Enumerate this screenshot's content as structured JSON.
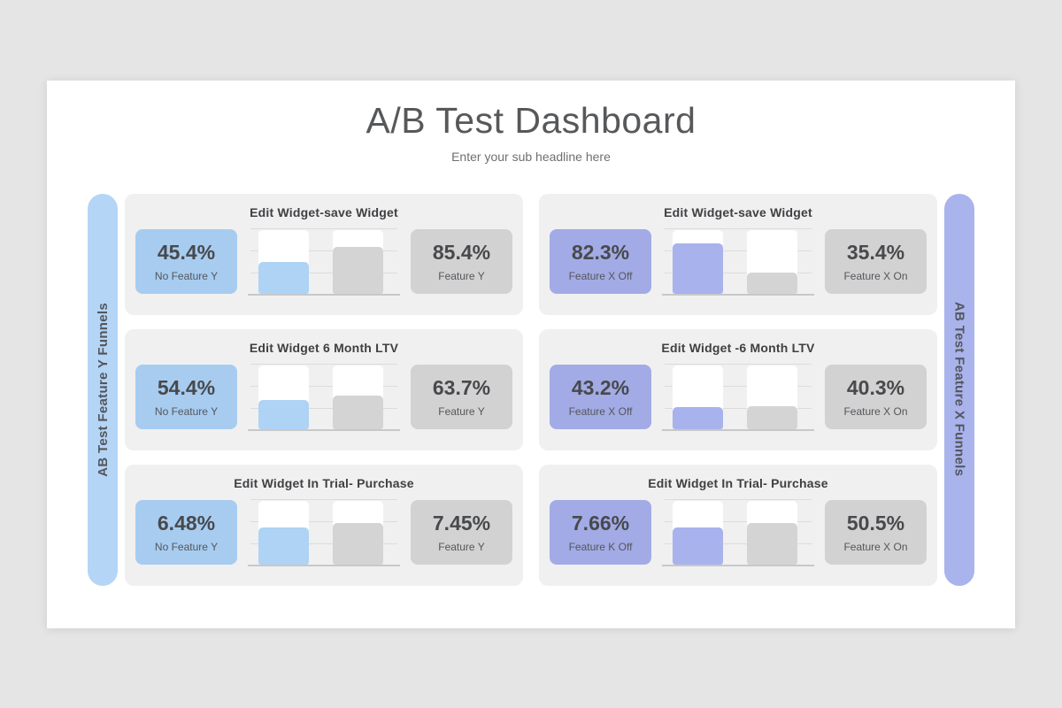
{
  "page": {
    "title": "A/B Test Dashboard",
    "subtitle": "Enter your sub headline here"
  },
  "left_rail": {
    "label": "AB Test Feature Y Funnels"
  },
  "right_rail": {
    "label": "AB Test Feature X Funnels"
  },
  "colors": {
    "canvas_bg": "#e5e5e6",
    "slide_bg": "#ffffff",
    "panel_bg": "#f0f0f1",
    "blue_box": "#a7ccf0",
    "blue_bar": "#aed3f4",
    "purple_box": "#a2abe5",
    "purple_bar": "#a8b2ec",
    "gray_box": "#d2d2d3",
    "gray_bar": "#d4d4d5",
    "pill_left": "#b4d5f6",
    "pill_right": "#a9b3ec",
    "grid_line": "#dcdcdd",
    "axis_line": "#c8c8c9",
    "title_color": "#57585a",
    "value_color": "#48494c"
  },
  "chart_data": [
    {
      "type": "bar",
      "title": "Edit Widget-save Widget",
      "funnel_group": "AB Test Feature Y Funnels",
      "categories": [
        "No Feature Y",
        "Feature Y"
      ],
      "values_pct": [
        45.4,
        85.4
      ],
      "display_values": [
        "45.4%",
        "85.4%"
      ],
      "bar_fill_fractions": [
        0.49,
        0.73
      ],
      "ylim": [
        0,
        100
      ],
      "grid": "on",
      "legend": "none"
    },
    {
      "type": "bar",
      "title": "Edit Widget 6 Month LTV",
      "funnel_group": "AB Test Feature Y Funnels",
      "categories": [
        "No Feature Y",
        "Feature Y"
      ],
      "values_pct": [
        54.4,
        63.7
      ],
      "display_values": [
        "54.4%",
        "63.7%"
      ],
      "bar_fill_fractions": [
        0.45,
        0.52
      ],
      "ylim": [
        0,
        100
      ],
      "grid": "on",
      "legend": "none"
    },
    {
      "type": "bar",
      "title": "Edit Widget In Trial- Purchase",
      "funnel_group": "AB Test Feature Y Funnels",
      "categories": [
        "No Feature Y",
        "Feature Y"
      ],
      "values_pct": [
        6.48,
        7.45
      ],
      "display_values": [
        "6.48%",
        "7.45%"
      ],
      "bar_fill_fractions": [
        0.57,
        0.65
      ],
      "ylim": [
        0,
        100
      ],
      "grid": "on",
      "legend": "none"
    },
    {
      "type": "bar",
      "title": "Edit Widget-save Widget",
      "funnel_group": "AB Test Feature X Funnels",
      "categories": [
        "Feature X Off",
        "Feature X On"
      ],
      "values_pct": [
        82.3,
        35.4
      ],
      "display_values": [
        "82.3%",
        "35.4%"
      ],
      "bar_fill_fractions": [
        0.79,
        0.33
      ],
      "ylim": [
        0,
        100
      ],
      "grid": "on",
      "legend": "none"
    },
    {
      "type": "bar",
      "title": "Edit Widget -6 Month LTV",
      "funnel_group": "AB Test Feature X Funnels",
      "categories": [
        "Feature X Off",
        "Feature X On"
      ],
      "values_pct": [
        43.2,
        40.3
      ],
      "display_values": [
        "43.2%",
        "40.3%"
      ],
      "bar_fill_fractions": [
        0.34,
        0.35
      ],
      "ylim": [
        0,
        100
      ],
      "grid": "on",
      "legend": "none"
    },
    {
      "type": "bar",
      "title": "Edit Widget In Trial- Purchase",
      "funnel_group": "AB Test Feature X Funnels",
      "categories": [
        "Feature K Off",
        "Feature X On"
      ],
      "values_pct": [
        7.66,
        50.5
      ],
      "display_values": [
        "7.66%",
        "50.5%"
      ],
      "bar_fill_fractions": [
        0.58,
        0.65
      ],
      "ylim": [
        0,
        100
      ],
      "grid": "on",
      "legend": "none"
    }
  ]
}
